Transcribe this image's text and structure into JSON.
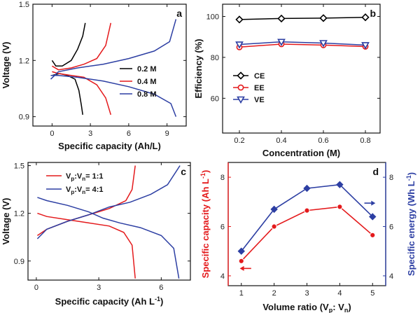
{
  "chart_data": [
    {
      "panel": "a",
      "type": "line",
      "xlabel": "Specific capacity (Ah/L)",
      "ylabel": "Voltage (V)",
      "xlim": [
        -1.5,
        10.5
      ],
      "ylim": [
        0.85,
        1.5
      ],
      "xticks": [
        0,
        3,
        6,
        9
      ],
      "yticks": [
        0.9,
        1.2,
        1.5
      ],
      "legend_position": "right",
      "series": [
        {
          "name": "0.2 M",
          "color": "#000000",
          "points": [
            [
              0,
              1.2
            ],
            [
              0.3,
              1.17
            ],
            [
              0.8,
              1.17
            ],
            [
              1.5,
              1.2
            ],
            [
              2,
              1.26
            ],
            [
              2.4,
              1.33
            ],
            [
              2.6,
              1.4
            ]
          ],
          "discharge": [
            [
              0,
              1.12
            ],
            [
              0.6,
              1.13
            ],
            [
              1.2,
              1.12
            ],
            [
              1.8,
              1.1
            ],
            [
              2.1,
              1.04
            ],
            [
              2.3,
              0.96
            ],
            [
              2.4,
              0.91
            ]
          ]
        },
        {
          "name": "0.4 M",
          "color": "#e41a1c",
          "points": [
            [
              0,
              1.17
            ],
            [
              0.5,
              1.15
            ],
            [
              1.5,
              1.16
            ],
            [
              2.5,
              1.18
            ],
            [
              3.5,
              1.21
            ],
            [
              4.2,
              1.28
            ],
            [
              4.6,
              1.4
            ]
          ],
          "discharge": [
            [
              0,
              1.14
            ],
            [
              0.5,
              1.13
            ],
            [
              1.5,
              1.12
            ],
            [
              2.5,
              1.11
            ],
            [
              3.5,
              1.07
            ],
            [
              4.2,
              1.0
            ],
            [
              4.6,
              0.91
            ]
          ]
        },
        {
          "name": "0.8 M",
          "color": "#2d3fa3",
          "points": [
            [
              -0.1,
              1.1
            ],
            [
              0.5,
              1.14
            ],
            [
              2,
              1.16
            ],
            [
              4,
              1.18
            ],
            [
              6,
              1.21
            ],
            [
              8,
              1.25
            ],
            [
              9.2,
              1.3
            ],
            [
              9.7,
              1.42
            ]
          ],
          "discharge": [
            [
              -0.1,
              1.12
            ],
            [
              0.5,
              1.12
            ],
            [
              2,
              1.11
            ],
            [
              4,
              1.09
            ],
            [
              6,
              1.06
            ],
            [
              8,
              1.02
            ],
            [
              9.3,
              0.97
            ],
            [
              9.7,
              0.9
            ]
          ]
        }
      ]
    },
    {
      "panel": "b",
      "type": "line",
      "xlabel": "Concentration (M)",
      "ylabel": "Efficiency (%)",
      "xlim": [
        0.12,
        0.87
      ],
      "ylim": [
        43,
        106
      ],
      "xticks": [
        0.2,
        0.4,
        0.6,
        0.8
      ],
      "yticks": [
        60,
        80,
        100
      ],
      "legend_position": "left",
      "x": [
        0.2,
        0.4,
        0.6,
        0.8
      ],
      "series": [
        {
          "name": "CE",
          "color": "#000000",
          "marker": "diamond",
          "values": [
            98.5,
            99,
            99.2,
            99.6
          ]
        },
        {
          "name": "EE",
          "color": "#e41a1c",
          "marker": "circle",
          "values": [
            85,
            86.5,
            86,
            85.3
          ]
        },
        {
          "name": "VE",
          "color": "#2d3fa3",
          "marker": "triangle-down",
          "values": [
            86.3,
            87.6,
            87,
            86
          ]
        }
      ]
    },
    {
      "panel": "c",
      "type": "line",
      "xlabel": "Specific capacity (Ah L",
      "xlabel_sup": "-1",
      "xlabel_end": ")",
      "ylabel": "Voltage (V)",
      "xlim": [
        -0.4,
        7.4
      ],
      "ylim": [
        0.78,
        1.52
      ],
      "xticks": [
        0,
        3,
        6
      ],
      "yticks": [
        0.9,
        1.2,
        1.5
      ],
      "legend_position": "top-left",
      "series": [
        {
          "name": "Vp:Vn = 1:1",
          "label_parts": [
            "V",
            "p",
            ":V",
            "n",
            "= 1:1"
          ],
          "color": "#e41a1c",
          "points": [
            [
              0.05,
              1.06
            ],
            [
              0.5,
              1.1
            ],
            [
              1.5,
              1.15
            ],
            [
              2.5,
              1.19
            ],
            [
              3.5,
              1.23
            ],
            [
              4.3,
              1.28
            ],
            [
              4.6,
              1.35
            ],
            [
              4.75,
              1.5
            ]
          ],
          "discharge": [
            [
              0.05,
              1.2
            ],
            [
              0.5,
              1.18
            ],
            [
              1.5,
              1.16
            ],
            [
              2.5,
              1.14
            ],
            [
              3.5,
              1.12
            ],
            [
              4.2,
              1.08
            ],
            [
              4.6,
              1.0
            ],
            [
              4.75,
              0.79
            ]
          ]
        },
        {
          "name": "Vp:Vn = 4:1",
          "label_parts": [
            "V",
            "p",
            ":V",
            "n",
            "= 4:1"
          ],
          "color": "#2d3fa3",
          "points": [
            [
              0.05,
              1.04
            ],
            [
              0.5,
              1.1
            ],
            [
              1.5,
              1.15
            ],
            [
              2.5,
              1.19
            ],
            [
              3.5,
              1.24
            ],
            [
              4.5,
              1.27
            ],
            [
              5.5,
              1.32
            ],
            [
              6.3,
              1.38
            ],
            [
              6.9,
              1.5
            ]
          ],
          "discharge": [
            [
              0.05,
              1.3
            ],
            [
              0.5,
              1.28
            ],
            [
              1.5,
              1.25
            ],
            [
              2.5,
              1.21
            ],
            [
              3.2,
              1.17
            ],
            [
              4.0,
              1.14
            ],
            [
              5.0,
              1.11
            ],
            [
              6.0,
              1.06
            ],
            [
              6.6,
              0.98
            ],
            [
              6.85,
              0.79
            ]
          ]
        }
      ]
    },
    {
      "panel": "d",
      "type": "line",
      "xlabel": "Volume ratio (V",
      "xlabel_sub1": "p",
      "xlabel_mid": ":  V",
      "xlabel_sub2": "n",
      "xlabel_end": ")",
      "ylabel_left": "Specific capacity (Ah L",
      "ylabel_left_sup": "-1",
      "ylabel_left_end": ")",
      "ylabel_right": "Specific energy (Wh L",
      "ylabel_right_sup": "-1",
      "ylabel_right_end": ")",
      "xlim": [
        0.6,
        5.4
      ],
      "ylim_left": [
        3.6,
        8.6
      ],
      "ylim_right": [
        3.6,
        8.6
      ],
      "xticks": [
        1,
        2,
        3,
        4,
        5
      ],
      "yticks_left": [
        4,
        6,
        8
      ],
      "yticks_right": [
        4,
        6,
        8
      ],
      "x": [
        1,
        2,
        3,
        4,
        5
      ],
      "series": [
        {
          "axis": "left",
          "color": "#e41a1c",
          "marker": "circle",
          "values": [
            4.6,
            6.0,
            6.65,
            6.8,
            5.65
          ]
        },
        {
          "axis": "right",
          "color": "#2d3fa3",
          "marker": "diamond",
          "values": [
            5.0,
            6.7,
            7.55,
            7.7,
            6.4
          ]
        }
      ]
    }
  ]
}
